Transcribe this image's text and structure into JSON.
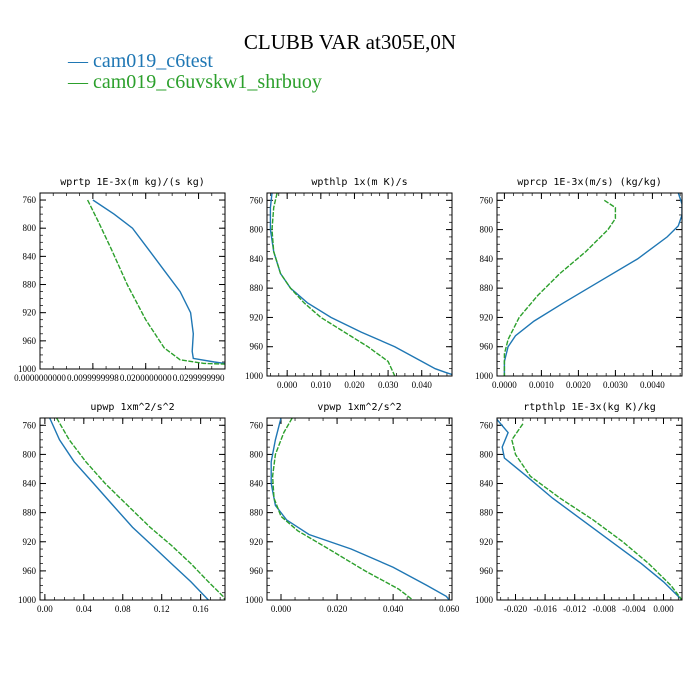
{
  "title": "CLUBB VAR at305E,0N",
  "legend": [
    {
      "marker": "—",
      "label": "cam019_c6test",
      "color": "#1f77b4"
    },
    {
      "marker": "—",
      "label": "cam019_c6uvskw1_shrbuoy",
      "color": "#2ca02c"
    }
  ],
  "colors": {
    "series1": "#1f77b4",
    "series2": "#2ca02c"
  },
  "chart_data": [
    {
      "type": "line",
      "title": "wprtp  1E-3x(m kg)/(s kg)",
      "xlim": [
        0.0,
        0.035
      ],
      "ylim": [
        1000,
        750
      ],
      "xticks": [
        0.0,
        0.0099999998,
        0.02,
        0.029999999
      ],
      "xtick_labels": [
        "0.0000000000",
        "0.0099999998",
        "0.0200000000",
        "0.0299999990"
      ],
      "yticks": [
        760,
        800,
        840,
        880,
        920,
        960,
        1000
      ],
      "series": [
        {
          "name": "cam019_c6test",
          "points": [
            [
              0.01,
              760
            ],
            [
              0.014,
              780
            ],
            [
              0.0175,
              800
            ],
            [
              0.0205,
              830
            ],
            [
              0.0235,
              860
            ],
            [
              0.0265,
              890
            ],
            [
              0.0285,
              920
            ],
            [
              0.029,
              950
            ],
            [
              0.0288,
              975
            ],
            [
              0.029,
              985
            ],
            [
              0.033,
              990
            ],
            [
              0.035,
              992
            ]
          ]
        },
        {
          "name": "cam019_c6uvskw1_shrbuoy",
          "points": [
            [
              0.009,
              760
            ],
            [
              0.011,
              790
            ],
            [
              0.0135,
              830
            ],
            [
              0.0165,
              880
            ],
            [
              0.02,
              930
            ],
            [
              0.0235,
              970
            ],
            [
              0.0265,
              987
            ],
            [
              0.031,
              992
            ],
            [
              0.035,
              993
            ]
          ]
        }
      ]
    },
    {
      "type": "line",
      "title": "wpthlp  1x(m K)/s",
      "xlim": [
        -0.006,
        0.049
      ],
      "ylim": [
        1000,
        750
      ],
      "xticks": [
        0.0,
        0.01,
        0.02,
        0.03,
        0.04
      ],
      "xtick_labels": [
        "0.000",
        "0.010",
        "0.020",
        "0.030",
        "0.040"
      ],
      "yticks": [
        760,
        800,
        840,
        880,
        920,
        960,
        1000
      ],
      "series": [
        {
          "name": "cam019_c6test",
          "points": [
            [
              -0.0045,
              750
            ],
            [
              -0.005,
              770
            ],
            [
              -0.005,
              800
            ],
            [
              -0.004,
              830
            ],
            [
              -0.002,
              860
            ],
            [
              0.001,
              880
            ],
            [
              0.006,
              900
            ],
            [
              0.013,
              920
            ],
            [
              0.022,
              940
            ],
            [
              0.032,
              960
            ],
            [
              0.04,
              980
            ],
            [
              0.044,
              990
            ],
            [
              0.047,
              995
            ],
            [
              0.049,
              998
            ]
          ]
        },
        {
          "name": "cam019_c6uvskw1_shrbuoy",
          "points": [
            [
              -0.003,
              750
            ],
            [
              -0.004,
              770
            ],
            [
              -0.0045,
              800
            ],
            [
              -0.004,
              830
            ],
            [
              -0.002,
              860
            ],
            [
              0.001,
              880
            ],
            [
              0.005,
              900
            ],
            [
              0.01,
              920
            ],
            [
              0.017,
              940
            ],
            [
              0.024,
              960
            ],
            [
              0.03,
              980
            ],
            [
              0.032,
              1000
            ]
          ]
        }
      ]
    },
    {
      "type": "line",
      "title": "wprcp  1E-3x(m/s) (kg/kg)",
      "xlim": [
        -0.0002,
        0.0048
      ],
      "ylim": [
        1000,
        750
      ],
      "xticks": [
        0.0,
        0.001,
        0.002,
        0.003,
        0.004
      ],
      "xtick_labels": [
        "0.0000",
        "0.0010",
        "0.0020",
        "0.0030",
        "0.0040"
      ],
      "yticks": [
        760,
        800,
        840,
        880,
        920,
        960,
        1000
      ],
      "series": [
        {
          "name": "cam019_c6test",
          "points": [
            [
              0.0047,
              750
            ],
            [
              0.0048,
              765
            ],
            [
              0.0048,
              780
            ],
            [
              0.0047,
              795
            ],
            [
              0.0044,
              810
            ],
            [
              0.0036,
              840
            ],
            [
              0.0026,
              870
            ],
            [
              0.0016,
              900
            ],
            [
              0.0008,
              925
            ],
            [
              0.0003,
              945
            ],
            [
              0.0001,
              960
            ],
            [
              0.0,
              980
            ],
            [
              0.0,
              1000
            ]
          ]
        },
        {
          "name": "cam019_c6uvskw1_shrbuoy",
          "points": [
            [
              0.0027,
              760
            ],
            [
              0.003,
              770
            ],
            [
              0.003,
              785
            ],
            [
              0.0028,
              800
            ],
            [
              0.0022,
              830
            ],
            [
              0.0015,
              860
            ],
            [
              0.0009,
              890
            ],
            [
              0.0004,
              920
            ],
            [
              0.0001,
              950
            ],
            [
              0.0,
              970
            ],
            [
              0.0,
              1000
            ]
          ]
        }
      ]
    },
    {
      "type": "line",
      "title": "upwp  1xm^2/s^2",
      "xlim": [
        -0.005,
        0.185
      ],
      "ylim": [
        1000,
        750
      ],
      "xticks": [
        0.0,
        0.04,
        0.08,
        0.12,
        0.16
      ],
      "xtick_labels": [
        "0.00",
        "0.04",
        "0.08",
        "0.12",
        "0.16"
      ],
      "yticks": [
        760,
        800,
        840,
        880,
        920,
        960,
        1000
      ],
      "series": [
        {
          "name": "cam019_c6test",
          "points": [
            [
              0.005,
              750
            ],
            [
              0.015,
              780
            ],
            [
              0.03,
              810
            ],
            [
              0.05,
              840
            ],
            [
              0.07,
              870
            ],
            [
              0.09,
              900
            ],
            [
              0.11,
              925
            ],
            [
              0.13,
              950
            ],
            [
              0.15,
              975
            ],
            [
              0.168,
              1000
            ]
          ]
        },
        {
          "name": "cam019_c6uvskw1_shrbuoy",
          "points": [
            [
              0.012,
              750
            ],
            [
              0.025,
              780
            ],
            [
              0.042,
              810
            ],
            [
              0.062,
              840
            ],
            [
              0.085,
              870
            ],
            [
              0.108,
              900
            ],
            [
              0.13,
              925
            ],
            [
              0.15,
              950
            ],
            [
              0.168,
              975
            ],
            [
              0.183,
              995
            ],
            [
              0.185,
              1000
            ]
          ]
        }
      ]
    },
    {
      "type": "line",
      "title": "vpwp  1xm^2/s^2",
      "xlim": [
        -0.005,
        0.061
      ],
      "ylim": [
        1000,
        750
      ],
      "xticks": [
        0.0,
        0.02,
        0.04,
        0.06
      ],
      "xtick_labels": [
        "0.000",
        "0.020",
        "0.040",
        "0.060"
      ],
      "yticks": [
        760,
        800,
        840,
        880,
        920,
        960,
        1000
      ],
      "series": [
        {
          "name": "cam019_c6test",
          "points": [
            [
              0.0,
              750
            ],
            [
              -0.002,
              780
            ],
            [
              -0.0035,
              810
            ],
            [
              -0.0035,
              840
            ],
            [
              -0.002,
              870
            ],
            [
              0.002,
              890
            ],
            [
              0.01,
              910
            ],
            [
              0.025,
              930
            ],
            [
              0.04,
              955
            ],
            [
              0.052,
              980
            ],
            [
              0.059,
              995
            ],
            [
              0.06,
              1000
            ]
          ]
        },
        {
          "name": "cam019_c6uvskw1_shrbuoy",
          "points": [
            [
              0.004,
              750
            ],
            [
              0.001,
              770
            ],
            [
              -0.002,
              800
            ],
            [
              -0.003,
              830
            ],
            [
              -0.0025,
              860
            ],
            [
              0.0,
              885
            ],
            [
              0.006,
              905
            ],
            [
              0.017,
              930
            ],
            [
              0.03,
              960
            ],
            [
              0.042,
              985
            ],
            [
              0.047,
              1000
            ]
          ]
        }
      ]
    },
    {
      "type": "line",
      "title": "rtpthlp  1E-3x(kg K)/kg",
      "xlim": [
        -0.0225,
        0.0025
      ],
      "ylim": [
        1000,
        750
      ],
      "xticks": [
        -0.02,
        -0.016,
        -0.012,
        -0.008,
        -0.004,
        0.0
      ],
      "xtick_labels": [
        "-0.020",
        "-0.016",
        "-0.012",
        "-0.008",
        "-0.004",
        "0.000"
      ],
      "yticks": [
        760,
        800,
        840,
        880,
        920,
        960,
        1000
      ],
      "series": [
        {
          "name": "cam019_c6test",
          "points": [
            [
              -0.0225,
              752
            ],
            [
              -0.021,
              770
            ],
            [
              -0.0218,
              790
            ],
            [
              -0.0215,
              805
            ],
            [
              -0.0185,
              830
            ],
            [
              -0.015,
              860
            ],
            [
              -0.011,
              890
            ],
            [
              -0.007,
              920
            ],
            [
              -0.003,
              950
            ],
            [
              0.0,
              975
            ],
            [
              0.0015,
              990
            ],
            [
              0.0025,
              1000
            ]
          ]
        },
        {
          "name": "cam019_c6uvskw1_shrbuoy",
          "points": [
            [
              -0.019,
              758
            ],
            [
              -0.0205,
              780
            ],
            [
              -0.02,
              800
            ],
            [
              -0.018,
              830
            ],
            [
              -0.014,
              860
            ],
            [
              -0.0095,
              890
            ],
            [
              -0.0055,
              920
            ],
            [
              -0.002,
              950
            ],
            [
              0.001,
              980
            ],
            [
              0.0025,
              1000
            ]
          ]
        }
      ]
    }
  ]
}
